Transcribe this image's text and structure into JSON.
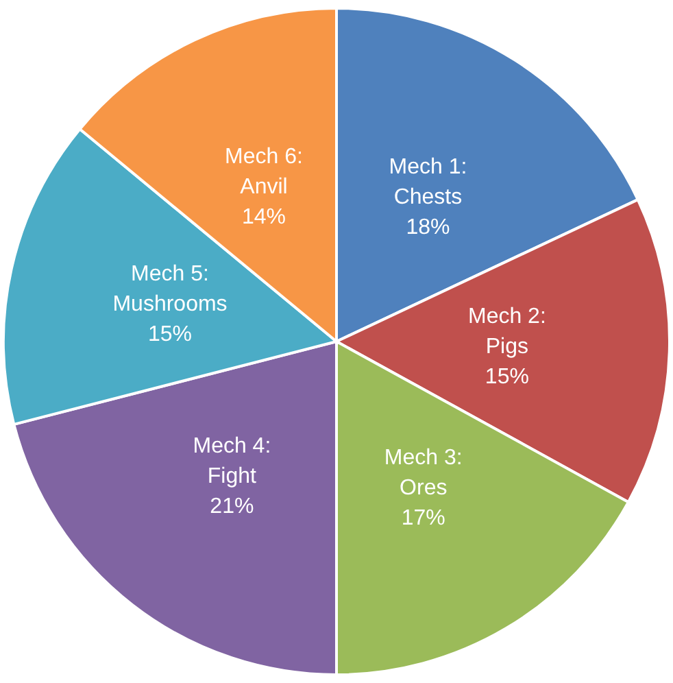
{
  "chart_data": {
    "type": "pie",
    "categories": [
      "Mech 1: Chests",
      "Mech 2: Pigs",
      "Mech 3: Ores",
      "Mech 4: Fight",
      "Mech 5: Mushrooms",
      "Mech 6: Anvil"
    ],
    "values": [
      18,
      15,
      17,
      21,
      15,
      14
    ],
    "value_labels": [
      "18%",
      "15%",
      "17%",
      "21%",
      "15%",
      "14%"
    ],
    "colors": [
      "#4f81bd",
      "#c0504d",
      "#9bbb59",
      "#8064a2",
      "#4bacc6",
      "#f79646"
    ],
    "legend": false
  }
}
